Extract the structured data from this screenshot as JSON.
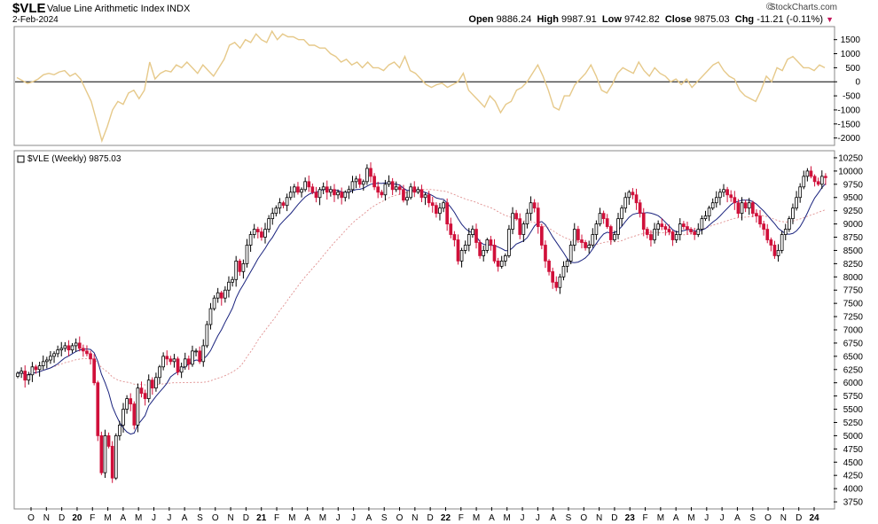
{
  "header": {
    "symbol": "$VLE",
    "description": "Value Line Arithmetic Index",
    "exchange": "INDX",
    "date": "2-Feb-2024",
    "brand": "StockCharts.com",
    "quote": {
      "open_label": "Open",
      "open": "9886.24",
      "high_label": "High",
      "high": "9987.91",
      "low_label": "Low",
      "low": "9742.82",
      "close_label": "Close",
      "close": "9875.03",
      "chg_label": "Chg",
      "chg": "-11.21 (-0.11%)"
    }
  },
  "colors": {
    "up": "#000000",
    "down": "#d0103a",
    "ma_fast": "#1a237e",
    "ma_slow": "#e09090",
    "indicator": "#e6c98a",
    "zero_line": "#000000",
    "frame": "#888888"
  },
  "chart_data": [
    {
      "type": "line",
      "role": "indicator-panel",
      "yticks": [
        "1500",
        "1000",
        "500",
        "0",
        "-500",
        "-1000",
        "-1500",
        "-2000"
      ],
      "ylim": [
        -2200,
        1900
      ],
      "zero_line": true,
      "values": [
        150,
        50,
        -60,
        0,
        100,
        250,
        300,
        250,
        350,
        400,
        200,
        300,
        100,
        -300,
        -700,
        -1400,
        -2100,
        -1600,
        -1000,
        -700,
        -800,
        -400,
        -300,
        -600,
        -300,
        700,
        100,
        300,
        400,
        350,
        600,
        500,
        700,
        500,
        300,
        600,
        400,
        200,
        500,
        800,
        1300,
        1400,
        1200,
        1500,
        1400,
        1700,
        1500,
        1400,
        1800,
        1500,
        1700,
        1600,
        1600,
        1500,
        1500,
        1300,
        1300,
        1200,
        1200,
        1000,
        900,
        700,
        800,
        600,
        700,
        500,
        700,
        500,
        500,
        400,
        600,
        700,
        500,
        900,
        400,
        300,
        100,
        -100,
        -200,
        -100,
        -50,
        -200,
        -100,
        0,
        300,
        -300,
        -500,
        -700,
        -900,
        -500,
        -700,
        -1100,
        -800,
        -700,
        -300,
        -200,
        0,
        300,
        600,
        200,
        -300,
        -900,
        -1000,
        -500,
        -500,
        -100,
        100,
        300,
        600,
        200,
        -300,
        -400,
        -100,
        300,
        500,
        400,
        300,
        700,
        400,
        200,
        500,
        300,
        200,
        0,
        100,
        -100,
        100,
        -200,
        0,
        200,
        400,
        600,
        700,
        400,
        200,
        100,
        -300,
        -500,
        -600,
        -700,
        -300,
        200,
        0,
        500,
        400,
        800,
        900,
        700,
        500,
        500,
        400,
        600,
        500
      ]
    },
    {
      "type": "candlestick",
      "series_name": "$VLE (Weekly) 9875.03",
      "yticks": [
        "10250",
        "10000",
        "9750",
        "9500",
        "9250",
        "9000",
        "8750",
        "8500",
        "8250",
        "8000",
        "7750",
        "7500",
        "7250",
        "7000",
        "6750",
        "6500",
        "6250",
        "6000",
        "5750",
        "5500",
        "5250",
        "5000",
        "4750",
        "4500",
        "4250",
        "4000",
        "3750"
      ],
      "ylim": [
        3650,
        10350
      ],
      "xticks": [
        "O",
        "N",
        "D",
        "20",
        "F",
        "M",
        "A",
        "M",
        "J",
        "J",
        "A",
        "S",
        "O",
        "N",
        "D",
        "21",
        "F",
        "M",
        "A",
        "M",
        "J",
        "J",
        "A",
        "S",
        "O",
        "N",
        "D",
        "22",
        "F",
        "M",
        "A",
        "M",
        "J",
        "J",
        "A",
        "S",
        "O",
        "N",
        "D",
        "23",
        "F",
        "M",
        "A",
        "M",
        "J",
        "J",
        "A",
        "S",
        "O",
        "N",
        "D",
        "24"
      ],
      "closes": [
        6180,
        6220,
        6050,
        6150,
        6300,
        6250,
        6320,
        6400,
        6430,
        6500,
        6550,
        6620,
        6650,
        6700,
        6620,
        6700,
        6750,
        6650,
        6600,
        6550,
        6450,
        6000,
        5000,
        4300,
        5000,
        4800,
        4200,
        5000,
        5200,
        5500,
        5700,
        5600,
        5200,
        5900,
        5800,
        5700,
        6050,
        5900,
        6100,
        6300,
        6500,
        6450,
        6400,
        6450,
        6200,
        6300,
        6450,
        6350,
        6600,
        6600,
        6400,
        6700,
        7100,
        7400,
        7600,
        7700,
        7600,
        7750,
        7900,
        7950,
        8300,
        8100,
        8250,
        8600,
        8800,
        8900,
        8850,
        8750,
        8900,
        9100,
        9200,
        9300,
        9400,
        9350,
        9500,
        9600,
        9700,
        9600,
        9650,
        9800,
        9700,
        9600,
        9500,
        9650,
        9700,
        9600,
        9650,
        9550,
        9600,
        9500,
        9600,
        9650,
        9800,
        9850,
        9750,
        9800,
        10050,
        9900,
        9700,
        9600,
        9550,
        9750,
        9800,
        9650,
        9700,
        9650,
        9450,
        9500,
        9700,
        9600,
        9650,
        9500,
        9550,
        9400,
        9350,
        9200,
        9300,
        9400,
        9000,
        8800,
        8700,
        8300,
        8500,
        8600,
        8800,
        8900,
        8650,
        8400,
        8500,
        8700,
        8600,
        8300,
        8200,
        8300,
        8400,
        8900,
        9200,
        9100,
        8800,
        9000,
        9200,
        9400,
        9300,
        8950,
        8600,
        8300,
        8100,
        7900,
        7800,
        8000,
        8200,
        8300,
        8600,
        8900,
        8700,
        8650,
        8550,
        8600,
        8800,
        9000,
        9200,
        9100,
        8950,
        8700,
        8800,
        9100,
        9300,
        9500,
        9600,
        9550,
        9400,
        9200,
        8900,
        8800,
        8700,
        8900,
        9000,
        8950,
        8900,
        8850,
        8700,
        8800,
        9000,
        8950,
        8900,
        8850,
        8800,
        8900,
        9100,
        9150,
        9300,
        9400,
        9500,
        9600,
        9650,
        9550,
        9500,
        9400,
        9200,
        9400,
        9300,
        9400,
        9200,
        9150,
        9000,
        8900,
        8700,
        8600,
        8400,
        8500,
        8800,
        8900,
        9100,
        9300,
        9500,
        9700,
        9900,
        10000,
        9900,
        9800,
        9750,
        9900,
        9875
      ]
    }
  ]
}
